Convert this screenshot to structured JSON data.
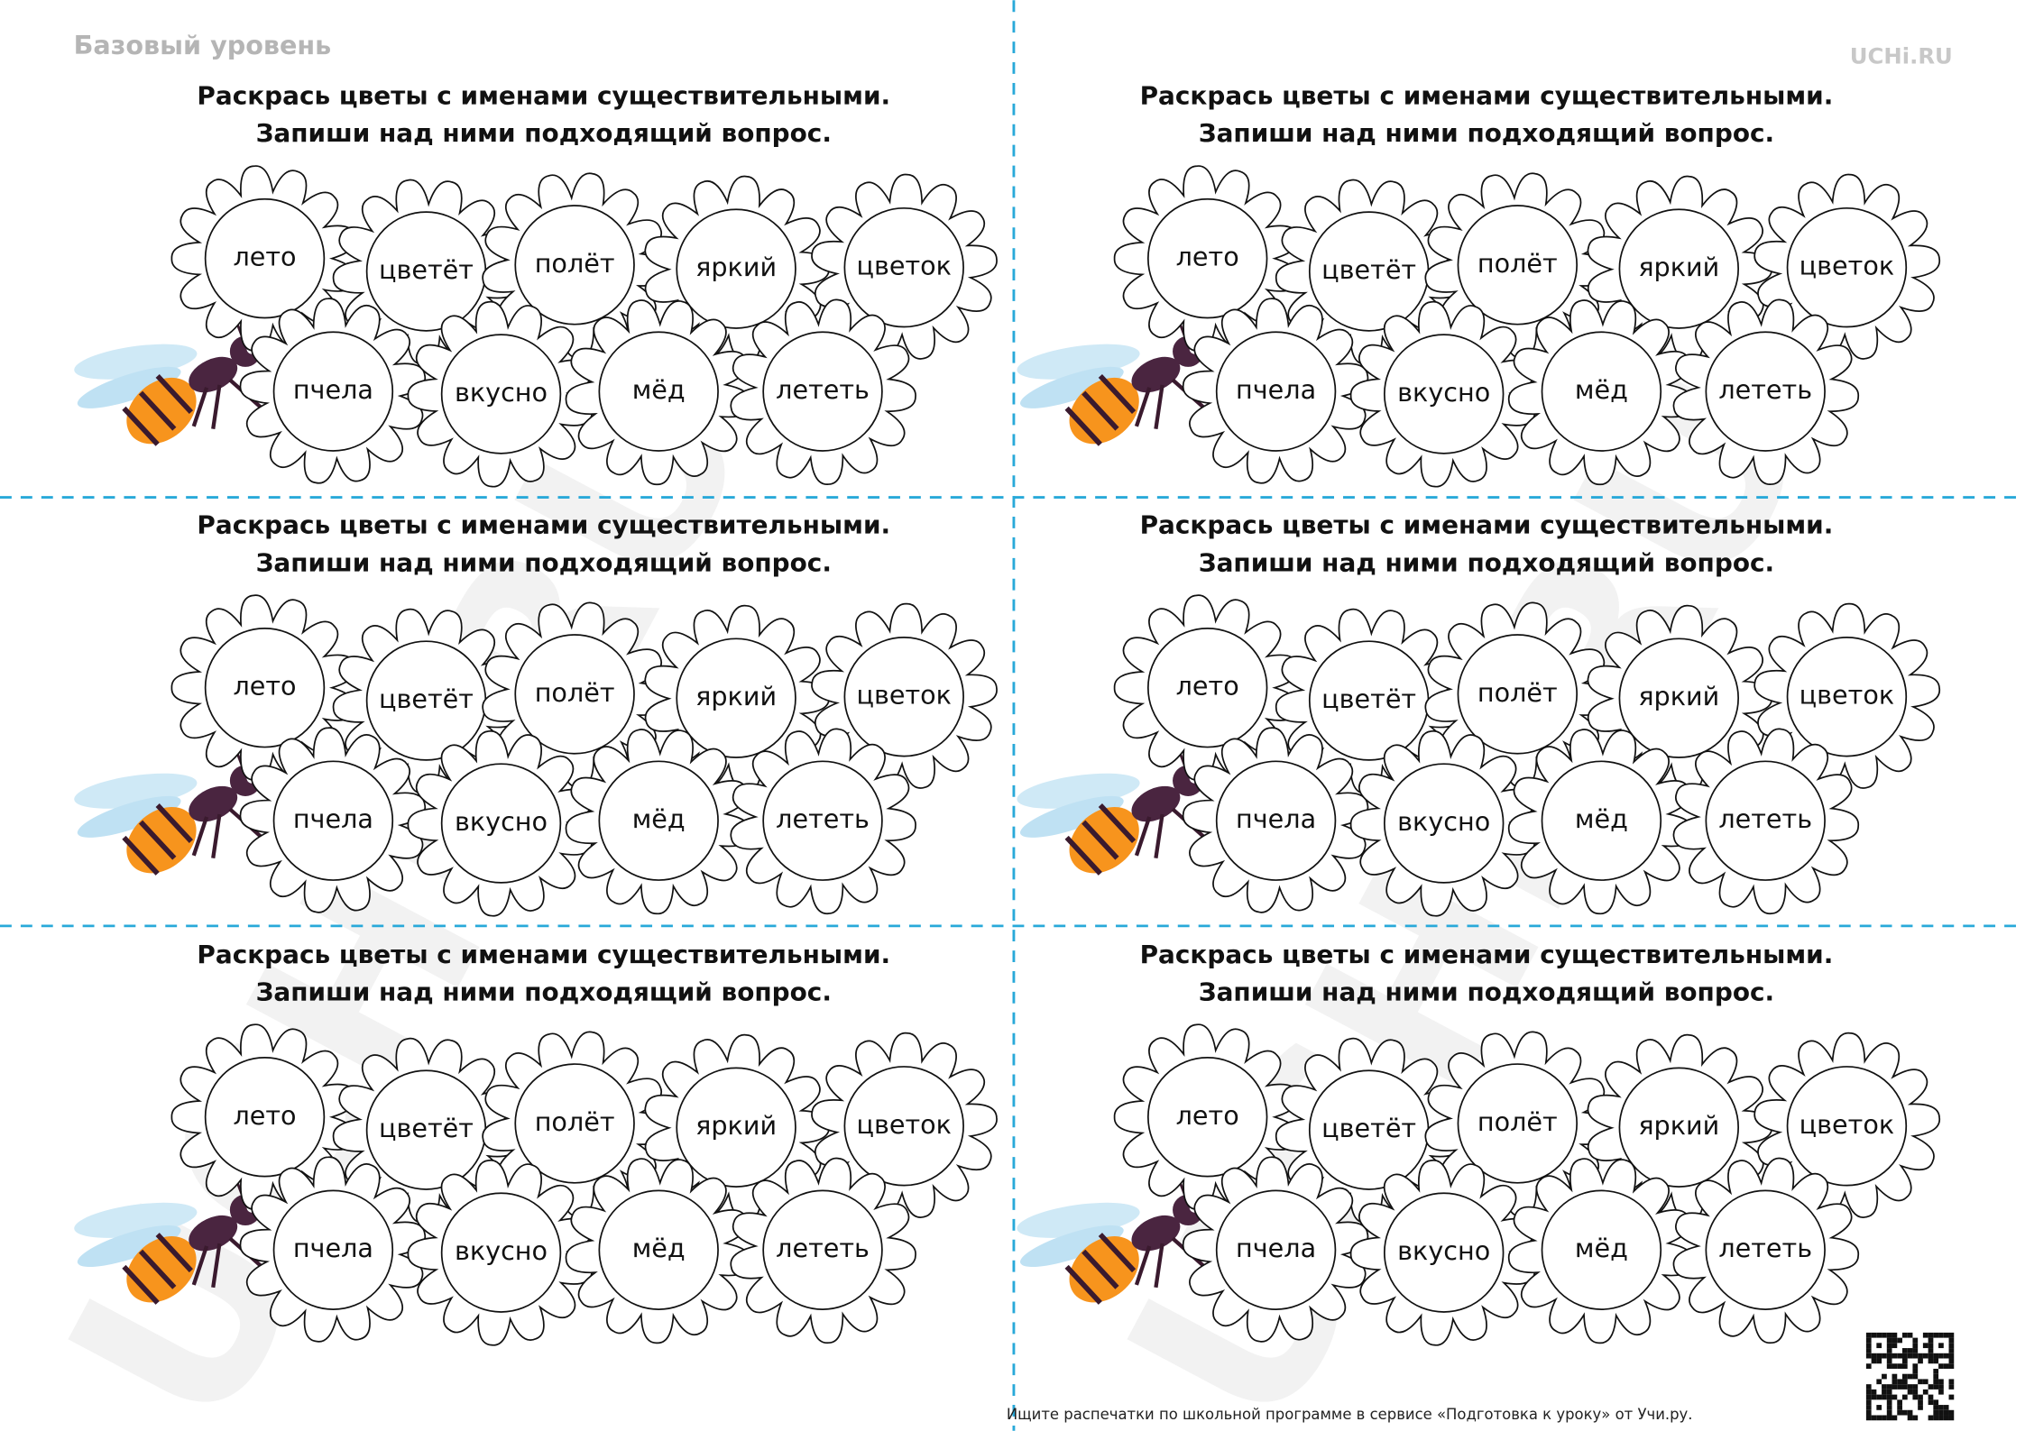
{
  "header": {
    "level": "Базовый уровень",
    "logo": "UCHi.RU"
  },
  "watermark": "UCHi.RU",
  "cards": [
    {
      "instruction": [
        "Раскрась цветы с именами существительными.",
        "Запиши над ними подходящий вопрос."
      ],
      "flowers": [
        "лето",
        "цветёт",
        "полёт",
        "яркий",
        "цветок",
        "пчела",
        "вкусно",
        "мёд",
        "лететь"
      ]
    },
    {
      "instruction": [
        "Раскрась цветы с именами существительными.",
        "Запиши над ними подходящий вопрос."
      ],
      "flowers": [
        "лето",
        "цветёт",
        "полёт",
        "яркий",
        "цветок",
        "пчела",
        "вкусно",
        "мёд",
        "лететь"
      ]
    },
    {
      "instruction": [
        "Раскрась цветы с именами существительными.",
        "Запиши над ними подходящий вопрос."
      ],
      "flowers": [
        "лето",
        "цветёт",
        "полёт",
        "яркий",
        "цветок",
        "пчела",
        "вкусно",
        "мёд",
        "лететь"
      ]
    },
    {
      "instruction": [
        "Раскрась цветы с именами существительными.",
        "Запиши над ними подходящий вопрос."
      ],
      "flowers": [
        "лето",
        "цветёт",
        "полёт",
        "яркий",
        "цветок",
        "пчела",
        "вкусно",
        "мёд",
        "лететь"
      ]
    },
    {
      "instruction": [
        "Раскрась цветы с именами существительными.",
        "Запиши над ними подходящий вопрос."
      ],
      "flowers": [
        "лето",
        "цветёт",
        "полёт",
        "яркий",
        "цветок",
        "пчела",
        "вкусно",
        "мёд",
        "лететь"
      ]
    },
    {
      "instruction": [
        "Раскрась цветы с именами существительными.",
        "Запиши над ними подходящий вопрос."
      ],
      "flowers": [
        "лето",
        "цветёт",
        "полёт",
        "яркий",
        "цветок",
        "пчела",
        "вкусно",
        "мёд",
        "лететь"
      ]
    }
  ],
  "footer": "Ищите распечатки по школьной программе в сервисе «Подготовка к уроку» от Учи.ру."
}
